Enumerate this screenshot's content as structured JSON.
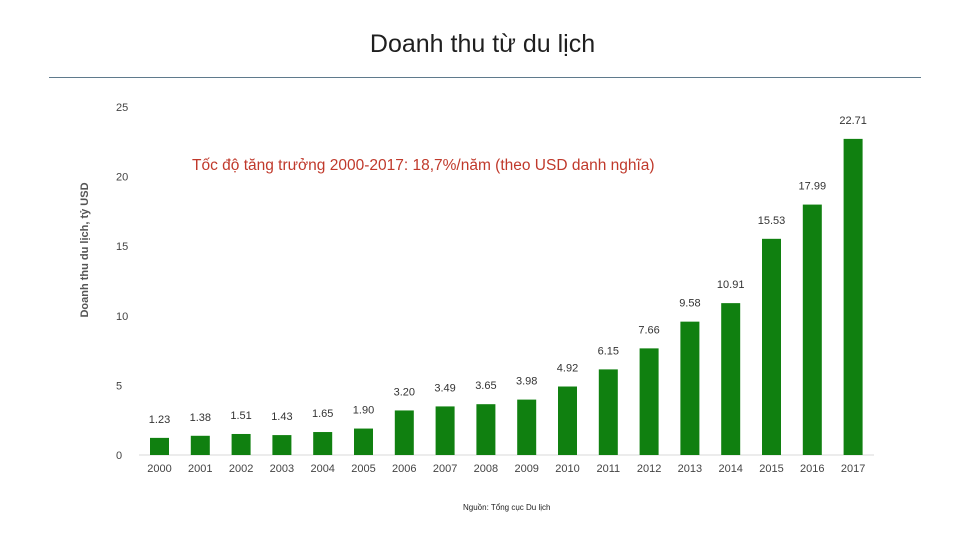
{
  "slide": {
    "title": "Doanh thu từ du lịch",
    "source_note": "Nguồn: Tổng cục Du lịch"
  },
  "chart_data": {
    "type": "bar",
    "ylabel": "Doanh thu du lịch, tỷ USD",
    "xlabel": "",
    "annotation": "Tốc độ tăng trưởng 2000-2017: 18,7%/năm (theo USD danh nghĩa)",
    "categories": [
      "2000",
      "2001",
      "2002",
      "2003",
      "2004",
      "2005",
      "2006",
      "2007",
      "2008",
      "2009",
      "2010",
      "2011",
      "2012",
      "2013",
      "2014",
      "2015",
      "2016",
      "2017"
    ],
    "values": [
      1.23,
      1.38,
      1.51,
      1.43,
      1.65,
      1.9,
      3.2,
      3.49,
      3.65,
      3.98,
      4.92,
      6.15,
      7.66,
      9.58,
      10.91,
      15.53,
      17.99,
      22.71
    ],
    "labels": [
      "1.23",
      "1.38",
      "1.51",
      "1.43",
      "1.65",
      "1.90",
      "3.20",
      "3.49",
      "3.65",
      "3.98",
      "4.92",
      "6.15",
      "7.66",
      "9.58",
      "10.91",
      "15.53",
      "17.99",
      "22.71"
    ],
    "yticks": [
      "0",
      "5",
      "10",
      "15",
      "20",
      "25"
    ],
    "ylim": [
      0,
      25
    ],
    "grid": false,
    "bar_color": "#108010"
  }
}
